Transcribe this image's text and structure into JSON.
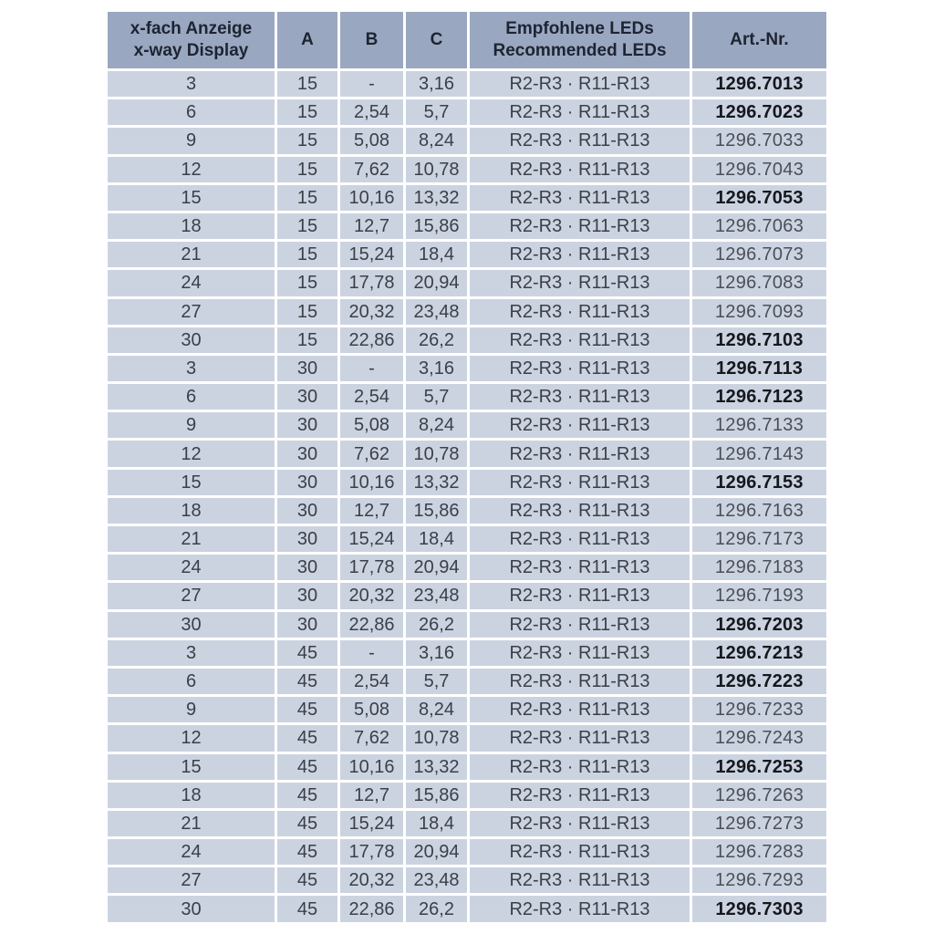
{
  "colors": {
    "page_bg": "#ffffff",
    "header_bg": "#9aa7c1",
    "row_bg": "#ccd3e0",
    "header_text": "#1d2432",
    "body_text": "#3a3f48",
    "bold_article_text": "#15181d",
    "separator": "#ffffff"
  },
  "table": {
    "header": {
      "col_display": {
        "line1": "x-fach Anzeige",
        "line2": "x-way Display"
      },
      "col_a": "A",
      "col_b": "B",
      "col_c": "C",
      "col_leds": {
        "line1": "Empfohlene LEDs",
        "line2": "Recommended LEDs"
      },
      "col_art": "Art.-Nr."
    },
    "rows": [
      {
        "display": "3",
        "a": "15",
        "b": "-",
        "c": "3,16",
        "leds": "R2-R3 · R11-R13",
        "art": "1296.7013",
        "art_bold": true
      },
      {
        "display": "6",
        "a": "15",
        "b": "2,54",
        "c": "5,7",
        "leds": "R2-R3 · R11-R13",
        "art": "1296.7023",
        "art_bold": true
      },
      {
        "display": "9",
        "a": "15",
        "b": "5,08",
        "c": "8,24",
        "leds": "R2-R3 · R11-R13",
        "art": "1296.7033",
        "art_bold": false
      },
      {
        "display": "12",
        "a": "15",
        "b": "7,62",
        "c": "10,78",
        "leds": "R2-R3 · R11-R13",
        "art": "1296.7043",
        "art_bold": false
      },
      {
        "display": "15",
        "a": "15",
        "b": "10,16",
        "c": "13,32",
        "leds": "R2-R3 · R11-R13",
        "art": "1296.7053",
        "art_bold": true
      },
      {
        "display": "18",
        "a": "15",
        "b": "12,7",
        "c": "15,86",
        "leds": "R2-R3 · R11-R13",
        "art": "1296.7063",
        "art_bold": false
      },
      {
        "display": "21",
        "a": "15",
        "b": "15,24",
        "c": "18,4",
        "leds": "R2-R3 · R11-R13",
        "art": "1296.7073",
        "art_bold": false
      },
      {
        "display": "24",
        "a": "15",
        "b": "17,78",
        "c": "20,94",
        "leds": "R2-R3 · R11-R13",
        "art": "1296.7083",
        "art_bold": false
      },
      {
        "display": "27",
        "a": "15",
        "b": "20,32",
        "c": "23,48",
        "leds": "R2-R3 · R11-R13",
        "art": "1296.7093",
        "art_bold": false
      },
      {
        "display": "30",
        "a": "15",
        "b": "22,86",
        "c": "26,2",
        "leds": "R2-R3 · R11-R13",
        "art": "1296.7103",
        "art_bold": true
      },
      {
        "display": "3",
        "a": "30",
        "b": "-",
        "c": "3,16",
        "leds": "R2-R3 · R11-R13",
        "art": "1296.7113",
        "art_bold": true
      },
      {
        "display": "6",
        "a": "30",
        "b": "2,54",
        "c": "5,7",
        "leds": "R2-R3 · R11-R13",
        "art": "1296.7123",
        "art_bold": true
      },
      {
        "display": "9",
        "a": "30",
        "b": "5,08",
        "c": "8,24",
        "leds": "R2-R3 · R11-R13",
        "art": "1296.7133",
        "art_bold": false
      },
      {
        "display": "12",
        "a": "30",
        "b": "7,62",
        "c": "10,78",
        "leds": "R2-R3 · R11-R13",
        "art": "1296.7143",
        "art_bold": false
      },
      {
        "display": "15",
        "a": "30",
        "b": "10,16",
        "c": "13,32",
        "leds": "R2-R3 · R11-R13",
        "art": "1296.7153",
        "art_bold": true
      },
      {
        "display": "18",
        "a": "30",
        "b": "12,7",
        "c": "15,86",
        "leds": "R2-R3 · R11-R13",
        "art": "1296.7163",
        "art_bold": false
      },
      {
        "display": "21",
        "a": "30",
        "b": "15,24",
        "c": "18,4",
        "leds": "R2-R3 · R11-R13",
        "art": "1296.7173",
        "art_bold": false
      },
      {
        "display": "24",
        "a": "30",
        "b": "17,78",
        "c": "20,94",
        "leds": "R2-R3 · R11-R13",
        "art": "1296.7183",
        "art_bold": false
      },
      {
        "display": "27",
        "a": "30",
        "b": "20,32",
        "c": "23,48",
        "leds": "R2-R3 · R11-R13",
        "art": "1296.7193",
        "art_bold": false
      },
      {
        "display": "30",
        "a": "30",
        "b": "22,86",
        "c": "26,2",
        "leds": "R2-R3 · R11-R13",
        "art": "1296.7203",
        "art_bold": true
      },
      {
        "display": "3",
        "a": "45",
        "b": "-",
        "c": "3,16",
        "leds": "R2-R3 · R11-R13",
        "art": "1296.7213",
        "art_bold": true
      },
      {
        "display": "6",
        "a": "45",
        "b": "2,54",
        "c": "5,7",
        "leds": "R2-R3 · R11-R13",
        "art": "1296.7223",
        "art_bold": true
      },
      {
        "display": "9",
        "a": "45",
        "b": "5,08",
        "c": "8,24",
        "leds": "R2-R3 · R11-R13",
        "art": "1296.7233",
        "art_bold": false
      },
      {
        "display": "12",
        "a": "45",
        "b": "7,62",
        "c": "10,78",
        "leds": "R2-R3 · R11-R13",
        "art": "1296.7243",
        "art_bold": false
      },
      {
        "display": "15",
        "a": "45",
        "b": "10,16",
        "c": "13,32",
        "leds": "R2-R3 · R11-R13",
        "art": "1296.7253",
        "art_bold": true
      },
      {
        "display": "18",
        "a": "45",
        "b": "12,7",
        "c": "15,86",
        "leds": "R2-R3 · R11-R13",
        "art": "1296.7263",
        "art_bold": false
      },
      {
        "display": "21",
        "a": "45",
        "b": "15,24",
        "c": "18,4",
        "leds": "R2-R3 · R11-R13",
        "art": "1296.7273",
        "art_bold": false
      },
      {
        "display": "24",
        "a": "45",
        "b": "17,78",
        "c": "20,94",
        "leds": "R2-R3 · R11-R13",
        "art": "1296.7283",
        "art_bold": false
      },
      {
        "display": "27",
        "a": "45",
        "b": "20,32",
        "c": "23,48",
        "leds": "R2-R3 · R11-R13",
        "art": "1296.7293",
        "art_bold": false
      },
      {
        "display": "30",
        "a": "45",
        "b": "22,86",
        "c": "26,2",
        "leds": "R2-R3 · R11-R13",
        "art": "1296.7303",
        "art_bold": true
      }
    ]
  }
}
